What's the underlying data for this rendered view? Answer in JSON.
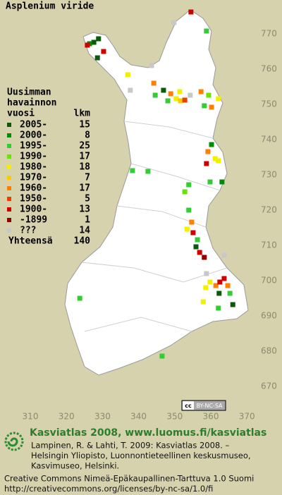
{
  "title": "Asplenium viride",
  "legend": {
    "header_lines": [
      "Uusimman",
      "havainnon",
      "vuosi"
    ],
    "count_header": "lkm",
    "classes": [
      {
        "label": "2005-",
        "count": 15,
        "color": "#0a5a0a",
        "squares": [
          [
            328.9,
            768.6
          ],
          [
            327.6,
            767.6
          ],
          [
            328.6,
            763.2
          ],
          [
            346.9,
            754
          ],
          [
            355.9,
            709.6
          ],
          [
            362.3,
            696.4
          ],
          [
            366.1,
            693.2
          ]
        ]
      },
      {
        "label": "2000-",
        "count": 8,
        "color": "#008c00",
        "squares": [
          [
            326.4,
            767.2
          ],
          [
            360.2,
            738.6
          ],
          [
            363.1,
            728
          ]
        ]
      },
      {
        "label": "1995-",
        "count": 25,
        "color": "#33cc33",
        "squares": [
          [
            358.8,
            770.8
          ],
          [
            344.6,
            752.6
          ],
          [
            358.2,
            749.6
          ],
          [
            348.1,
            751
          ],
          [
            359.8,
            728
          ],
          [
            353.9,
            727.2
          ],
          [
            338.3,
            731.2
          ],
          [
            342.6,
            731
          ],
          [
            353.9,
            720
          ],
          [
            356.3,
            711.6
          ],
          [
            365.3,
            696.4
          ],
          [
            362.1,
            692.2
          ],
          [
            323.7,
            695
          ],
          [
            346.5,
            678.6
          ]
        ]
      },
      {
        "label": "1990-",
        "count": 17,
        "color": "#66e600",
        "squares": [
          [
            352.8,
            725.2
          ],
          [
            359.4,
            752.6
          ]
        ]
      },
      {
        "label": "1980-",
        "count": 18,
        "color": "#f0f000",
        "squares": [
          [
            337,
            758.4
          ],
          [
            351.4,
            753.6
          ],
          [
            350.4,
            751.6
          ],
          [
            362.1,
            751.6
          ],
          [
            361.2,
            734.6
          ],
          [
            362.1,
            734
          ],
          [
            353.4,
            714.6
          ],
          [
            359.8,
            699.6
          ],
          [
            358.6,
            698
          ],
          [
            357.9,
            694
          ]
        ]
      },
      {
        "label": "1970-",
        "count": 7,
        "color": "#ffc800",
        "squares": [
          [
            351.6,
            751
          ]
        ]
      },
      {
        "label": "1960-",
        "count": 17,
        "color": "#ff7f00",
        "squares": [
          [
            344.2,
            756
          ],
          [
            348.9,
            753
          ],
          [
            357.3,
            753.6
          ],
          [
            360.2,
            749.2
          ],
          [
            359.2,
            736.6
          ],
          [
            354.7,
            716.6
          ],
          [
            361.4,
            698.6
          ],
          [
            364.7,
            698.6
          ]
        ]
      },
      {
        "label": "1950-",
        "count": 5,
        "color": "#e84000",
        "squares": [
          [
            352.8,
            751.2
          ]
        ]
      },
      {
        "label": "1900-",
        "count": 13,
        "color": "#d00000",
        "squares": [
          [
            354.5,
            776.2
          ],
          [
            325.8,
            766.8
          ],
          [
            330.3,
            765
          ],
          [
            358.8,
            733.2
          ],
          [
            355.1,
            713.6
          ],
          [
            356.9,
            708
          ],
          [
            362.5,
            699.6
          ],
          [
            363.7,
            700.6
          ]
        ]
      },
      {
        "label": "-1899",
        "count": 1,
        "color": "#8c0000",
        "squares": [
          [
            358.2,
            706.6
          ]
        ]
      },
      {
        "label": "???",
        "count": 14,
        "color": "#c8c8c8",
        "squares": [
          [
            349.8,
            773.2
          ],
          [
            343.6,
            761
          ],
          [
            337.7,
            754
          ],
          [
            354.3,
            752.6
          ],
          [
            363.7,
            707.2
          ],
          [
            358.8,
            702
          ]
        ]
      }
    ],
    "total_label": "Yhteensä",
    "total": 140
  },
  "x_ticks": [
    310,
    320,
    330,
    340,
    350,
    360,
    370
  ],
  "y_ticks": [
    670,
    680,
    690,
    700,
    710,
    720,
    730,
    740,
    750,
    760,
    770
  ],
  "license_badge": "BY-NC-SA",
  "footer": {
    "brand": "Kasviatlas 2008, www.luomus.fi/kasviatlas",
    "citation": [
      "Lampinen, R. & Lahti, T. 2009: Kasviatlas 2008. –",
      "Helsingin Yliopisto, Luonnontieteellinen keskusmuseo,",
      "Kasvimuseo, Helsinki."
    ],
    "license": [
      "Creative Commons Nimeä-Epäkaupallinen-Tarttuva 1.0 Suomi",
      "http://creativecommons.org/licenses/by-nc-sa/1.0/fi"
    ]
  }
}
